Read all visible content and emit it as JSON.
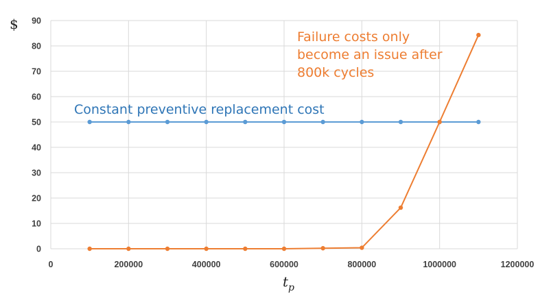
{
  "chart_data": {
    "type": "line",
    "title": "",
    "ylabel": "$",
    "xlabel": "t",
    "xlabel_sub": "p",
    "xlim": [
      0,
      1200000
    ],
    "ylim": [
      0,
      90
    ],
    "xticks": [
      0,
      200000,
      400000,
      600000,
      800000,
      1000000,
      1200000
    ],
    "yticks": [
      0,
      10,
      20,
      30,
      40,
      50,
      60,
      70,
      80,
      90
    ],
    "grid": true,
    "x": [
      100000,
      200000,
      300000,
      400000,
      500000,
      600000,
      700000,
      800000,
      900000,
      1000000,
      1100000
    ],
    "series": [
      {
        "key": "preventive",
        "color": "#5b9bd5",
        "values": [
          50,
          50,
          50,
          50,
          50,
          50,
          50,
          50,
          50,
          50,
          50
        ]
      },
      {
        "key": "failure",
        "color": "#ed7d31",
        "values": [
          0,
          0,
          0,
          0,
          0,
          0,
          0.2,
          0.4,
          16.2,
          50,
          84.3
        ]
      }
    ],
    "annotations": [
      {
        "key": "preventive",
        "color": "#2e75b6",
        "lines": [
          "Constant preventive replacement cost"
        ]
      },
      {
        "key": "failure",
        "color": "#ed7d31",
        "lines": [
          "Failure costs only",
          "become an issue after",
          "800k cycles"
        ]
      }
    ]
  }
}
